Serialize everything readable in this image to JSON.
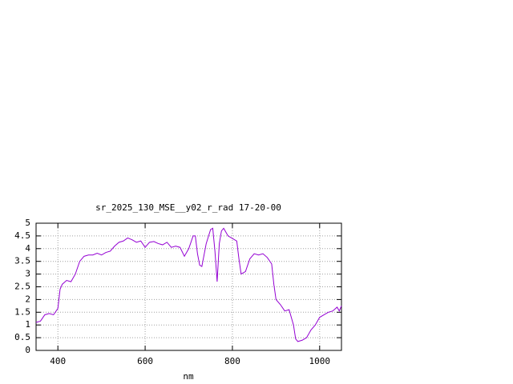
{
  "chart_data": {
    "type": "line",
    "title": "sr_2025_130_MSE__y02_r_rad 17-20-00",
    "x_label": "nm",
    "x": [
      350,
      360,
      370,
      380,
      390,
      400,
      405,
      410,
      420,
      430,
      440,
      450,
      460,
      470,
      480,
      490,
      500,
      510,
      520,
      530,
      540,
      550,
      560,
      570,
      580,
      590,
      600,
      610,
      620,
      630,
      640,
      650,
      660,
      670,
      680,
      690,
      700,
      710,
      715,
      720,
      725,
      730,
      740,
      750,
      755,
      760,
      765,
      770,
      775,
      780,
      790,
      800,
      810,
      815,
      820,
      830,
      840,
      850,
      860,
      870,
      880,
      890,
      895,
      900,
      910,
      920,
      930,
      940,
      945,
      950,
      960,
      970,
      980,
      990,
      1000,
      1010,
      1020,
      1030,
      1040,
      1045,
      1050
    ],
    "series": [
      {
        "color": "#9400d3",
        "values": [
          1.1,
          1.15,
          1.4,
          1.45,
          1.4,
          1.65,
          2.4,
          2.6,
          2.75,
          2.7,
          3.0,
          3.5,
          3.7,
          3.75,
          3.75,
          3.82,
          3.75,
          3.85,
          3.9,
          4.1,
          4.25,
          4.3,
          4.42,
          4.35,
          4.25,
          4.3,
          4.05,
          4.25,
          4.28,
          4.2,
          4.15,
          4.25,
          4.05,
          4.1,
          4.05,
          3.7,
          4.0,
          4.5,
          4.5,
          3.8,
          3.35,
          3.3,
          4.2,
          4.75,
          4.8,
          3.9,
          2.7,
          4.2,
          4.7,
          4.8,
          4.5,
          4.4,
          4.3,
          3.6,
          3.0,
          3.1,
          3.6,
          3.8,
          3.75,
          3.8,
          3.65,
          3.4,
          2.6,
          2.0,
          1.8,
          1.55,
          1.6,
          1.0,
          0.45,
          0.35,
          0.4,
          0.5,
          0.8,
          1.0,
          1.3,
          1.4,
          1.5,
          1.55,
          1.7,
          1.55,
          1.75
        ]
      }
    ],
    "xlim": [
      350,
      1050
    ],
    "xticks": [
      400,
      600,
      800,
      1000
    ],
    "ylim": [
      0,
      5
    ],
    "yticks": [
      0,
      0.5,
      1,
      1.5,
      2,
      2.5,
      3,
      3.5,
      4,
      4.5,
      5
    ],
    "grid": true
  }
}
